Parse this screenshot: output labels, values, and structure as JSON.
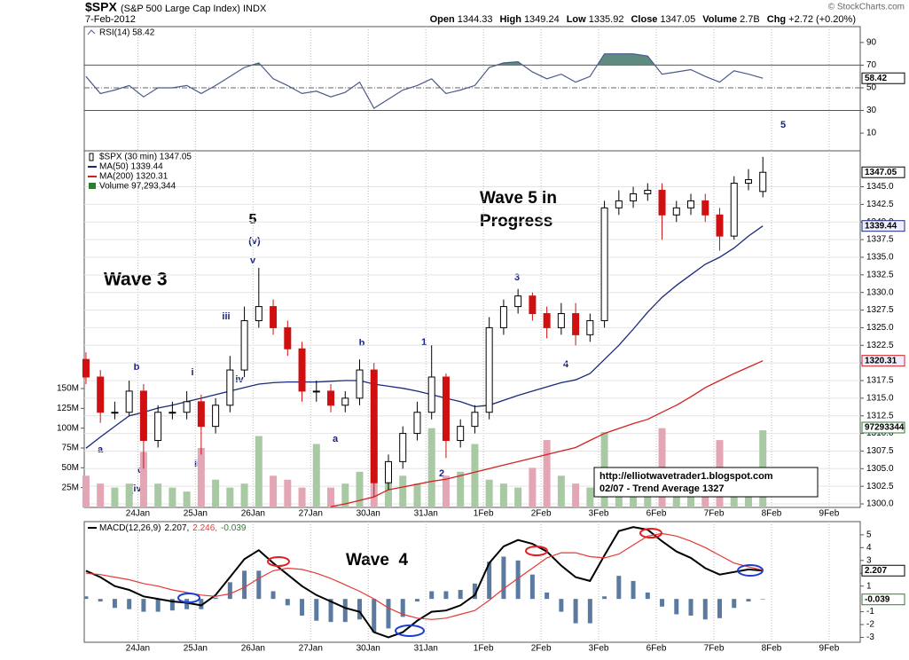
{
  "header": {
    "symbol": "$SPX",
    "name": "(S&P 500 Large Cap Index) INDX",
    "date": "7-Feb-2012",
    "quote": [
      {
        "label": "Open",
        "value": "1344.33"
      },
      {
        "label": "High",
        "value": "1349.24"
      },
      {
        "label": "Low",
        "value": "1335.92"
      },
      {
        "label": "Close",
        "value": "1347.05"
      },
      {
        "label": "Volume",
        "value": "2.7B"
      },
      {
        "label": "Chg",
        "value": "+2.72 (+0.20%)"
      }
    ],
    "source": "© StockCharts.com"
  },
  "annotations": [
    "Wave 3",
    "Wave 5 in",
    "Progress",
    "Wave  4",
    "5",
    "(v)",
    "v",
    "iii",
    "iv",
    "i",
    "ii",
    "b",
    "c",
    "(iv)",
    "a",
    "a",
    "b",
    "1",
    "2",
    "3",
    "4",
    "5"
  ],
  "note_box": [
    "http://elliotwavetrader1.blogspot.com",
    "02/07 - Trend Average 1327"
  ],
  "chart_data": [
    {
      "type": "line",
      "title": "RSI(14) 58.42",
      "x": [
        0.1,
        0.35,
        0.6,
        0.85,
        1.1,
        1.35,
        1.6,
        1.85,
        2.1,
        2.35,
        2.6,
        2.85,
        3.1,
        3.35,
        3.6,
        3.85,
        4.1,
        4.35,
        4.6,
        4.85,
        5.1,
        5.35,
        5.6,
        5.85,
        6.1,
        6.35,
        6.6,
        6.85,
        7.1,
        7.35,
        7.6,
        7.85,
        8.1,
        8.35,
        8.6,
        8.85,
        9.1,
        9.35,
        9.6,
        9.85,
        10.1,
        10.35,
        10.6,
        10.85,
        11.1,
        11.35,
        11.6,
        11.85
      ],
      "xlim": [
        0.07,
        13.54
      ],
      "xticks": [
        1,
        2,
        3,
        4,
        5,
        6,
        7,
        8,
        9,
        10,
        11,
        12,
        13
      ],
      "ylim": [
        -5.6,
        104
      ],
      "yticks": [
        10,
        30,
        50,
        70,
        90
      ],
      "ref_lines": [
        70,
        30
      ],
      "mid_line": 50,
      "overbought": 70,
      "fill_color": "#5f8a7f",
      "series": [
        {
          "color": "#4a5a8a",
          "last_label": "58.42",
          "values": [
            60,
            45,
            48,
            52,
            42,
            50,
            50,
            52,
            45,
            52,
            60,
            68,
            72,
            58,
            52,
            45,
            47,
            42,
            46,
            55,
            32,
            40,
            48,
            52,
            58,
            45,
            48,
            52,
            68,
            72,
            73,
            64,
            58,
            62,
            55,
            60,
            80,
            80,
            80,
            78,
            62,
            64,
            66,
            60,
            55,
            65,
            62,
            58.42
          ]
        }
      ]
    },
    {
      "type": "candlestick",
      "title": "$SPX (30 min) 1347.05",
      "last_label": "1347.05",
      "up_color": "#000000",
      "down_color": "#d01010",
      "grid": true,
      "x": [
        0.1,
        0.35,
        0.6,
        0.85,
        1.1,
        1.35,
        1.6,
        1.85,
        2.1,
        2.35,
        2.6,
        2.85,
        3.1,
        3.35,
        3.6,
        3.85,
        4.1,
        4.35,
        4.6,
        4.85,
        5.1,
        5.35,
        5.6,
        5.85,
        6.1,
        6.35,
        6.6,
        6.85,
        7.1,
        7.35,
        7.6,
        7.85,
        8.1,
        8.35,
        8.6,
        8.85,
        9.1,
        9.35,
        9.6,
        9.85,
        10.1,
        10.35,
        10.6,
        10.85,
        11.1,
        11.35,
        11.6,
        11.85
      ],
      "xlim": [
        0.07,
        13.54
      ],
      "xticks": [
        {
          "value": 1,
          "label": "24Jan"
        },
        {
          "value": 2,
          "label": "25Jan"
        },
        {
          "value": 3,
          "label": "26Jan"
        },
        {
          "value": 4,
          "label": "27Jan"
        },
        {
          "value": 5,
          "label": "30Jan"
        },
        {
          "value": 6,
          "label": "31Jan"
        },
        {
          "value": 7,
          "label": "1Feb"
        },
        {
          "value": 8,
          "label": "2Feb"
        },
        {
          "value": 9,
          "label": "3Feb"
        },
        {
          "value": 10,
          "label": "6Feb"
        },
        {
          "value": 11,
          "label": "7Feb"
        },
        {
          "value": 12,
          "label": "8Feb"
        },
        {
          "value": 13,
          "label": "9Feb"
        }
      ],
      "ylim": [
        1299.5,
        1350.1
      ],
      "yticks": [
        {
          "value": 1300,
          "label": "1300.0"
        },
        {
          "value": 1302.5,
          "label": "1302.5"
        },
        {
          "value": 1305,
          "label": "1305.0"
        },
        {
          "value": 1307.5,
          "label": "1307.5"
        },
        {
          "value": 1310,
          "label": "1310.0"
        },
        {
          "value": 1312.5,
          "label": "1312.5"
        },
        {
          "value": 1315,
          "label": "1315.0"
        },
        {
          "value": 1317.5,
          "label": "1317.5"
        },
        {
          "value": 1320,
          "label": "1320.0"
        },
        {
          "value": 1322.5,
          "label": "1322.5"
        },
        {
          "value": 1325,
          "label": "1325.0"
        },
        {
          "value": 1327.5,
          "label": "1327.5"
        },
        {
          "value": 1330,
          "label": "1330.0"
        },
        {
          "value": 1332.5,
          "label": "1332.5"
        },
        {
          "value": 1335,
          "label": "1335.0"
        },
        {
          "value": 1337.5,
          "label": "1337.5"
        },
        {
          "value": 1340,
          "label": "1340.0"
        },
        {
          "value": 1342.5,
          "label": "1342.5"
        },
        {
          "value": 1345,
          "label": "1345.0"
        }
      ],
      "open": [
        1320.5,
        1318,
        1313,
        1313,
        1316,
        1309,
        1313,
        1313,
        1314.5,
        1311,
        1314,
        1319,
        1326,
        1328,
        1325,
        1322,
        1316,
        1316,
        1314,
        1315,
        1319,
        1303,
        1306,
        1310,
        1313,
        1318,
        1309,
        1311,
        1313,
        1325,
        1328,
        1329.5,
        1327,
        1325,
        1327,
        1324,
        1326,
        1342,
        1343,
        1344,
        1344.5,
        1341,
        1342,
        1343,
        1341,
        1338,
        1345.5,
        1344.33
      ],
      "high": [
        1321.5,
        1319,
        1314.5,
        1317.5,
        1317,
        1314,
        1314.5,
        1316,
        1315.5,
        1315,
        1321,
        1328,
        1333.5,
        1329,
        1326,
        1323,
        1317.5,
        1317,
        1316,
        1320.5,
        1320,
        1307,
        1311,
        1314.5,
        1322.5,
        1318.5,
        1312,
        1314,
        1326.5,
        1329,
        1330.5,
        1330,
        1328,
        1328.5,
        1328.5,
        1327,
        1343,
        1344.5,
        1345,
        1345.5,
        1345.5,
        1343,
        1344,
        1344,
        1342,
        1346.5,
        1347.5,
        1349.24
      ],
      "low": [
        1317,
        1311.5,
        1312,
        1312.5,
        1305,
        1308,
        1312,
        1312,
        1307,
        1310,
        1313,
        1318,
        1325,
        1324,
        1321,
        1314.5,
        1314.5,
        1313,
        1313,
        1314,
        1301,
        1302,
        1305,
        1309,
        1312,
        1306.5,
        1308,
        1310,
        1312,
        1324,
        1327,
        1326,
        1323.5,
        1324,
        1322.5,
        1323,
        1325,
        1341,
        1342,
        1343,
        1337.5,
        1340,
        1341,
        1340,
        1335.92,
        1337.5,
        1344.5,
        1343.5
      ],
      "close": [
        1318,
        1313,
        1313,
        1316,
        1309,
        1313,
        1313,
        1314.5,
        1311,
        1314,
        1319,
        1326,
        1328,
        1325,
        1322,
        1316,
        1316,
        1314,
        1315,
        1319,
        1303,
        1306,
        1310,
        1313,
        1318,
        1309,
        1311,
        1313,
        1325,
        1328,
        1329.5,
        1327,
        1325,
        1327,
        1324,
        1326,
        1342,
        1343,
        1344,
        1344.5,
        1341,
        1342,
        1343,
        1341,
        1338,
        1345.5,
        1346,
        1347.05
      ],
      "series": [
        {
          "name": "MA(50) 1339.44",
          "color": "#1a2a7a",
          "last_label": "1339.44",
          "values": [
            1307.9,
            1309.5,
            1311,
            1312.5,
            1313,
            1313.6,
            1314,
            1314.5,
            1315,
            1315.5,
            1316,
            1316.5,
            1317,
            1317.2,
            1317.3,
            1317.3,
            1317.3,
            1317.4,
            1317.5,
            1317.5,
            1317,
            1316.7,
            1316.4,
            1316,
            1315.5,
            1315,
            1314.5,
            1313.8,
            1314,
            1314.7,
            1315.4,
            1316,
            1316.6,
            1317.2,
            1317.6,
            1318.5,
            1320.5,
            1322.5,
            1324.8,
            1327.2,
            1329.3,
            1331,
            1332.5,
            1334,
            1335,
            1336.3,
            1338,
            1339.44
          ]
        },
        {
          "name": "MA(200) 1320.31",
          "color": "#d32020",
          "last_label": "1320.31",
          "values": [
            null,
            null,
            null,
            null,
            null,
            null,
            null,
            null,
            null,
            null,
            null,
            null,
            null,
            null,
            null,
            null,
            null,
            1299.6,
            1300,
            1300.5,
            1301,
            1302,
            1302.4,
            1302.8,
            1303.2,
            1303.5,
            1304,
            1304.5,
            1305,
            1305.5,
            1306,
            1306.5,
            1307,
            1307.5,
            1308,
            1309,
            1310,
            1310.7,
            1311.4,
            1312,
            1313,
            1314,
            1315.2,
            1316.5,
            1317.5,
            1318.5,
            1319.4,
            1320.31
          ]
        }
      ],
      "volume": {
        "name": "Volume 97,293,344",
        "color": "#2e7d32",
        "last_label": "97293344",
        "up_color": "#a9c9a4",
        "down_color": "#e3a6b4",
        "y2lim": [
          0,
          450000000
        ],
        "y2ticks": [
          {
            "value": 25000000,
            "label": "25M"
          },
          {
            "value": 50000000,
            "label": "50M"
          },
          {
            "value": 75000000,
            "label": "75M"
          },
          {
            "value": 100000000,
            "label": "100M"
          },
          {
            "value": 125000000,
            "label": "125M"
          },
          {
            "value": 150000000,
            "label": "150M"
          }
        ],
        "values": [
          40000000,
          30000000,
          25000000,
          30000000,
          70000000,
          30000000,
          25000000,
          20000000,
          75000000,
          35000000,
          25000000,
          30000000,
          90000000,
          40000000,
          35000000,
          25000000,
          80000000,
          25000000,
          30000000,
          45000000,
          105000000,
          45000000,
          40000000,
          30000000,
          100000000,
          40000000,
          45000000,
          80000000,
          35000000,
          30000000,
          25000000,
          50000000,
          85000000,
          40000000,
          30000000,
          25000000,
          95000000,
          40000000,
          30000000,
          25000000,
          100000000,
          40000000,
          30000000,
          25000000,
          85000000,
          40000000,
          35000000,
          97293344
        ]
      }
    },
    {
      "type": "macd",
      "title": "MACD(12,26,9)",
      "x": [
        0.1,
        0.35,
        0.6,
        0.85,
        1.1,
        1.35,
        1.6,
        1.85,
        2.1,
        2.35,
        2.6,
        2.85,
        3.1,
        3.35,
        3.6,
        3.85,
        4.1,
        4.35,
        4.6,
        4.85,
        5.1,
        5.35,
        5.6,
        5.85,
        6.1,
        6.35,
        6.6,
        6.85,
        7.1,
        7.35,
        7.6,
        7.85,
        8.1,
        8.35,
        8.6,
        8.85,
        9.1,
        9.35,
        9.6,
        9.85,
        10.1,
        10.35,
        10.6,
        10.85,
        11.1,
        11.35,
        11.6,
        11.85
      ],
      "xlim": [
        0.07,
        13.54
      ],
      "xticks": [
        {
          "value": 1,
          "label": "24Jan"
        },
        {
          "value": 2,
          "label": "25Jan"
        },
        {
          "value": 3,
          "label": "26Jan"
        },
        {
          "value": 4,
          "label": "27Jan"
        },
        {
          "value": 5,
          "label": "30Jan"
        },
        {
          "value": 6,
          "label": "31Jan"
        },
        {
          "value": 7,
          "label": "1Feb"
        },
        {
          "value": 8,
          "label": "2Feb"
        },
        {
          "value": 9,
          "label": "3Feb"
        },
        {
          "value": 10,
          "label": "6Feb"
        },
        {
          "value": 11,
          "label": "7Feb"
        },
        {
          "value": 12,
          "label": "8Feb"
        },
        {
          "value": 13,
          "label": "9Feb"
        }
      ],
      "ylim": [
        -3.38,
        6.03
      ],
      "yticks": [
        -3,
        -2,
        -1,
        1,
        2,
        3,
        4,
        5
      ],
      "series": [
        {
          "label": "2.207,",
          "color": "#000000",
          "last_label": "2.207",
          "values": [
            2.2,
            1.7,
            1.0,
            0.7,
            0.2,
            0.0,
            -0.2,
            -0.3,
            -0.5,
            0.3,
            1.7,
            3.1,
            3.8,
            2.8,
            1.9,
            1.0,
            0.3,
            -0.2,
            -0.7,
            -1.0,
            -2.6,
            -3.0,
            -2.6,
            -1.7,
            -1.0,
            -0.9,
            -0.5,
            0.3,
            2.8,
            4.1,
            4.6,
            4.3,
            3.7,
            2.6,
            1.7,
            1.4,
            3.4,
            5.3,
            5.6,
            5.4,
            4.5,
            3.7,
            3.2,
            2.4,
            1.9,
            2.1,
            2.3,
            2.207
          ]
        },
        {
          "label": "2.246,",
          "color": "#e53935",
          "values": [
            2.0,
            1.9,
            1.7,
            1.5,
            1.2,
            1.0,
            0.7,
            0.5,
            0.3,
            0.2,
            0.4,
            0.9,
            1.6,
            2.2,
            2.4,
            2.3,
            2.0,
            1.6,
            1.1,
            0.6,
            0.0,
            -0.7,
            -1.2,
            -1.5,
            -1.6,
            -1.5,
            -1.2,
            -0.9,
            -0.1,
            0.8,
            1.6,
            2.4,
            3.2,
            3.6,
            3.6,
            3.3,
            3.2,
            3.5,
            4.2,
            4.9,
            5.1,
            4.9,
            4.5,
            4.0,
            3.4,
            2.8,
            2.5,
            2.246
          ]
        },
        {
          "label": "-0.039",
          "color": "#2e7d32",
          "bar_color": "#5b7aa0",
          "last_label": "-0.039",
          "histogram": true,
          "values": [
            0.2,
            -0.2,
            -0.7,
            -0.8,
            -1.0,
            -1.0,
            -0.9,
            -0.8,
            -0.8,
            0.1,
            1.3,
            2.2,
            2.2,
            0.6,
            -0.5,
            -1.3,
            -1.7,
            -1.8,
            -1.8,
            -1.6,
            -2.6,
            -2.3,
            -1.4,
            -0.2,
            0.6,
            0.6,
            0.7,
            1.2,
            2.9,
            3.3,
            3.0,
            1.9,
            0.5,
            -1.0,
            -1.9,
            -1.9,
            0.2,
            1.8,
            1.4,
            0.5,
            -0.6,
            -1.2,
            -1.3,
            -1.6,
            -1.5,
            -0.7,
            -0.2,
            -0.039
          ]
        }
      ]
    }
  ]
}
